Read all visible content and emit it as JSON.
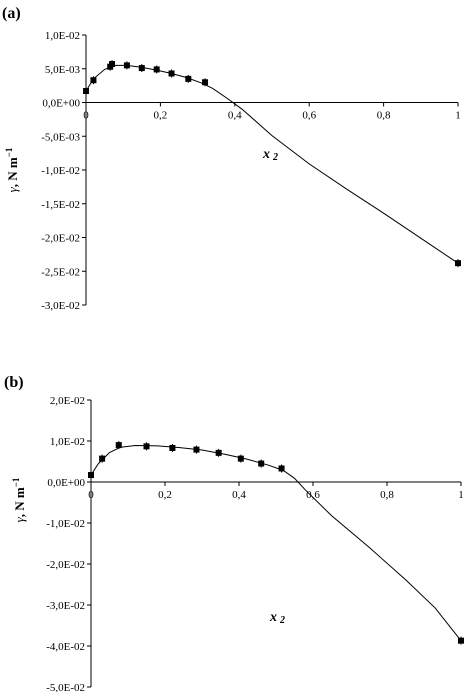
{
  "chart_data": [
    {
      "panel_label": "(a)",
      "type": "scatter",
      "xlabel": "x",
      "xlabel_sub": "2",
      "ylabel_symbol": "γ",
      "ylabel_text": ", N m",
      "ylabel_sup": "−1",
      "x_ticks": [
        "0",
        "0,2",
        "0,4",
        "0,6",
        "0,8",
        "1"
      ],
      "x_tick_values": [
        0,
        0.2,
        0.4,
        0.6,
        0.8,
        1.0
      ],
      "y_ticks": [
        "1,0E-02",
        "5,0E-03",
        "0,0E+00",
        "-5,0E-03",
        "-1,0E-02",
        "-1,5E-02",
        "-2,0E-02",
        "-2,5E-02",
        "-3,0E-02"
      ],
      "y_tick_values": [
        0.01,
        0.005,
        0.0,
        -0.005,
        -0.01,
        -0.015,
        -0.02,
        -0.025,
        -0.03
      ],
      "xlim": [
        0,
        1
      ],
      "ylim": [
        -0.03,
        0.01
      ],
      "grid": false,
      "series": [
        {
          "points": [
            {
              "x": 0.0,
              "y": 0.0017
            },
            {
              "x": 0.02,
              "y": 0.0033
            },
            {
              "x": 0.065,
              "y": 0.0053
            },
            {
              "x": 0.07,
              "y": 0.0057
            },
            {
              "x": 0.11,
              "y": 0.0055
            },
            {
              "x": 0.15,
              "y": 0.0051
            },
            {
              "x": 0.19,
              "y": 0.0049
            },
            {
              "x": 0.23,
              "y": 0.0043
            },
            {
              "x": 0.275,
              "y": 0.0035
            },
            {
              "x": 0.32,
              "y": 0.003
            },
            {
              "x": 1.0,
              "y": -0.0238
            }
          ],
          "curve": [
            {
              "x": 0.0,
              "y": 0.0017
            },
            {
              "x": 0.02,
              "y": 0.0035
            },
            {
              "x": 0.05,
              "y": 0.0049
            },
            {
              "x": 0.08,
              "y": 0.0055
            },
            {
              "x": 0.11,
              "y": 0.0055
            },
            {
              "x": 0.15,
              "y": 0.0052
            },
            {
              "x": 0.19,
              "y": 0.0048
            },
            {
              "x": 0.23,
              "y": 0.0043
            },
            {
              "x": 0.27,
              "y": 0.0037
            },
            {
              "x": 0.31,
              "y": 0.0029
            },
            {
              "x": 0.34,
              "y": 0.0021
            },
            {
              "x": 0.38,
              "y": 0.0006
            },
            {
              "x": 0.42,
              "y": -0.001
            },
            {
              "x": 0.5,
              "y": -0.0049
            },
            {
              "x": 0.6,
              "y": -0.0091
            },
            {
              "x": 0.7,
              "y": -0.0128
            },
            {
              "x": 0.8,
              "y": -0.0164
            },
            {
              "x": 0.9,
              "y": -0.0201
            },
            {
              "x": 1.0,
              "y": -0.0238
            }
          ]
        }
      ]
    },
    {
      "panel_label": "(b)",
      "type": "scatter",
      "xlabel": "x",
      "xlabel_sub": "2",
      "ylabel_symbol": "γ",
      "ylabel_text": ", N m",
      "ylabel_sup": "−1",
      "x_ticks": [
        "0",
        "0,2",
        "0,4",
        "0,6",
        "0,8",
        "1"
      ],
      "x_tick_values": [
        0,
        0.2,
        0.4,
        0.6,
        0.8,
        1.0
      ],
      "y_ticks": [
        "2,0E-02",
        "1,0E-02",
        "0,0E+00",
        "-1,0E-02",
        "-2,0E-02",
        "-3,0E-02",
        "-4,0E-02",
        "-5,0E-02"
      ],
      "y_tick_values": [
        0.02,
        0.01,
        0.0,
        -0.01,
        -0.02,
        -0.03,
        -0.04,
        -0.05
      ],
      "xlim": [
        0,
        1
      ],
      "ylim": [
        -0.05,
        0.02
      ],
      "grid": false,
      "series": [
        {
          "points": [
            {
              "x": 0.0,
              "y": 0.0017
            },
            {
              "x": 0.03,
              "y": 0.0057
            },
            {
              "x": 0.075,
              "y": 0.009
            },
            {
              "x": 0.15,
              "y": 0.0087
            },
            {
              "x": 0.22,
              "y": 0.0083
            },
            {
              "x": 0.285,
              "y": 0.0079
            },
            {
              "x": 0.345,
              "y": 0.0071
            },
            {
              "x": 0.405,
              "y": 0.0057
            },
            {
              "x": 0.46,
              "y": 0.0045
            },
            {
              "x": 0.515,
              "y": 0.0033
            },
            {
              "x": 1.0,
              "y": -0.0387
            }
          ],
          "curve": [
            {
              "x": 0.0,
              "y": 0.0017
            },
            {
              "x": 0.02,
              "y": 0.0045
            },
            {
              "x": 0.05,
              "y": 0.0072
            },
            {
              "x": 0.08,
              "y": 0.0085
            },
            {
              "x": 0.12,
              "y": 0.0089
            },
            {
              "x": 0.18,
              "y": 0.0088
            },
            {
              "x": 0.24,
              "y": 0.0084
            },
            {
              "x": 0.3,
              "y": 0.0078
            },
            {
              "x": 0.36,
              "y": 0.0068
            },
            {
              "x": 0.42,
              "y": 0.0056
            },
            {
              "x": 0.48,
              "y": 0.0041
            },
            {
              "x": 0.52,
              "y": 0.0028
            },
            {
              "x": 0.55,
              "y": 0.0009
            },
            {
              "x": 0.58,
              "y": -0.002
            },
            {
              "x": 0.65,
              "y": -0.0082
            },
            {
              "x": 0.75,
              "y": -0.0158
            },
            {
              "x": 0.85,
              "y": -0.0238
            },
            {
              "x": 0.93,
              "y": -0.0307
            },
            {
              "x": 1.0,
              "y": -0.0387
            }
          ]
        }
      ]
    }
  ]
}
